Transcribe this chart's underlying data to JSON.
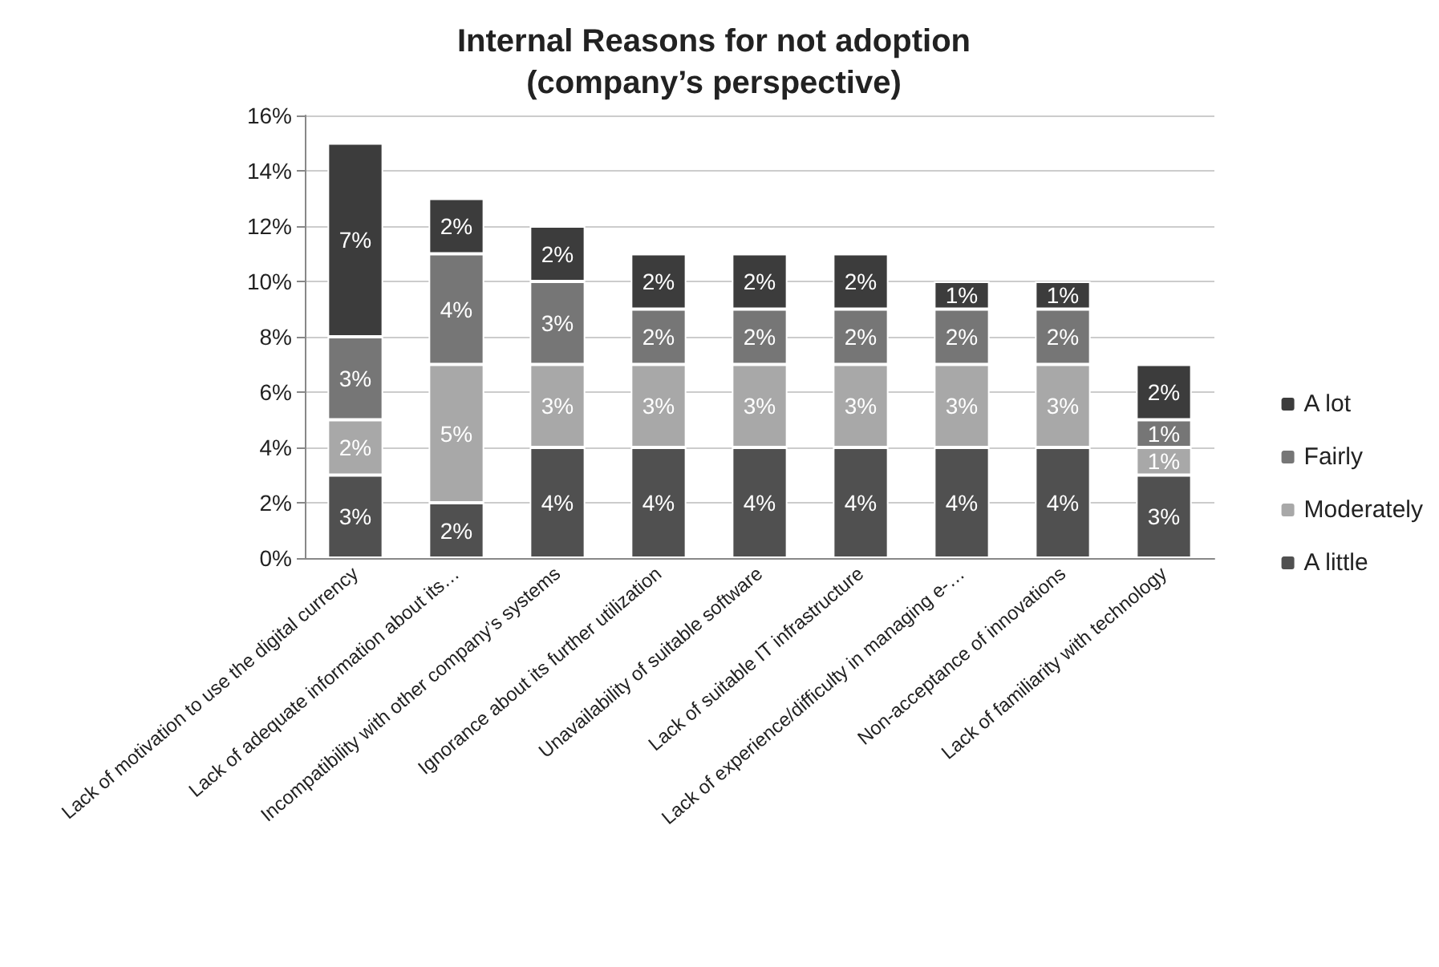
{
  "chart_data": {
    "type": "bar",
    "stacked": true,
    "title": "Internal Reasons for not adoption\n(company’s perspective)",
    "categories": [
      "Lack of motivation to use the digital currency",
      "Lack of adequate information about its…",
      "Incompatibility with other company’s systems",
      "Ignorance about its further utilization",
      "Unavailability of suitable software",
      "Lack of suitable IT infrastructure",
      "Lack of experience/difficulty in managing e-…",
      "Non-acceptance of innovations",
      "Lack of familiarity with technology"
    ],
    "series": [
      {
        "name": "A little",
        "color": "#505050",
        "values": [
          3,
          2,
          4,
          4,
          4,
          4,
          4,
          4,
          3
        ],
        "value_labels": [
          "3%",
          "2%",
          "4%",
          "4%",
          "4%",
          "4%",
          "4%",
          "4%",
          "3%"
        ]
      },
      {
        "name": "Moderately",
        "color": "#a8a8a8",
        "values": [
          2,
          5,
          3,
          3,
          3,
          3,
          3,
          3,
          1
        ],
        "value_labels": [
          "2%",
          "5%",
          "3%",
          "3%",
          "3%",
          "3%",
          "3%",
          "3%",
          "1%"
        ]
      },
      {
        "name": "Fairly",
        "color": "#767676",
        "values": [
          3,
          4,
          3,
          2,
          2,
          2,
          2,
          2,
          1
        ],
        "value_labels": [
          "3%",
          "4%",
          "3%",
          "2%",
          "2%",
          "2%",
          "2%",
          "2%",
          "1%"
        ]
      },
      {
        "name": "A lot",
        "color": "#3c3c3c",
        "values": [
          7,
          2,
          2,
          2,
          2,
          2,
          1,
          1,
          2
        ],
        "value_labels": [
          "7%",
          "2%",
          "2%",
          "2%",
          "2%",
          "2%",
          "1%",
          "1%",
          "2%"
        ]
      }
    ],
    "ylim": [
      0,
      16
    ],
    "yticks": [
      {
        "value": 0,
        "label": "0%"
      },
      {
        "value": 2,
        "label": "2%"
      },
      {
        "value": 4,
        "label": "4%"
      },
      {
        "value": 6,
        "label": "6%"
      },
      {
        "value": 8,
        "label": "8%"
      },
      {
        "value": 10,
        "label": "10%"
      },
      {
        "value": 12,
        "label": "12%"
      },
      {
        "value": 14,
        "label": "14%"
      },
      {
        "value": 16,
        "label": "16%"
      }
    ],
    "grid": "y",
    "legend": "right"
  }
}
